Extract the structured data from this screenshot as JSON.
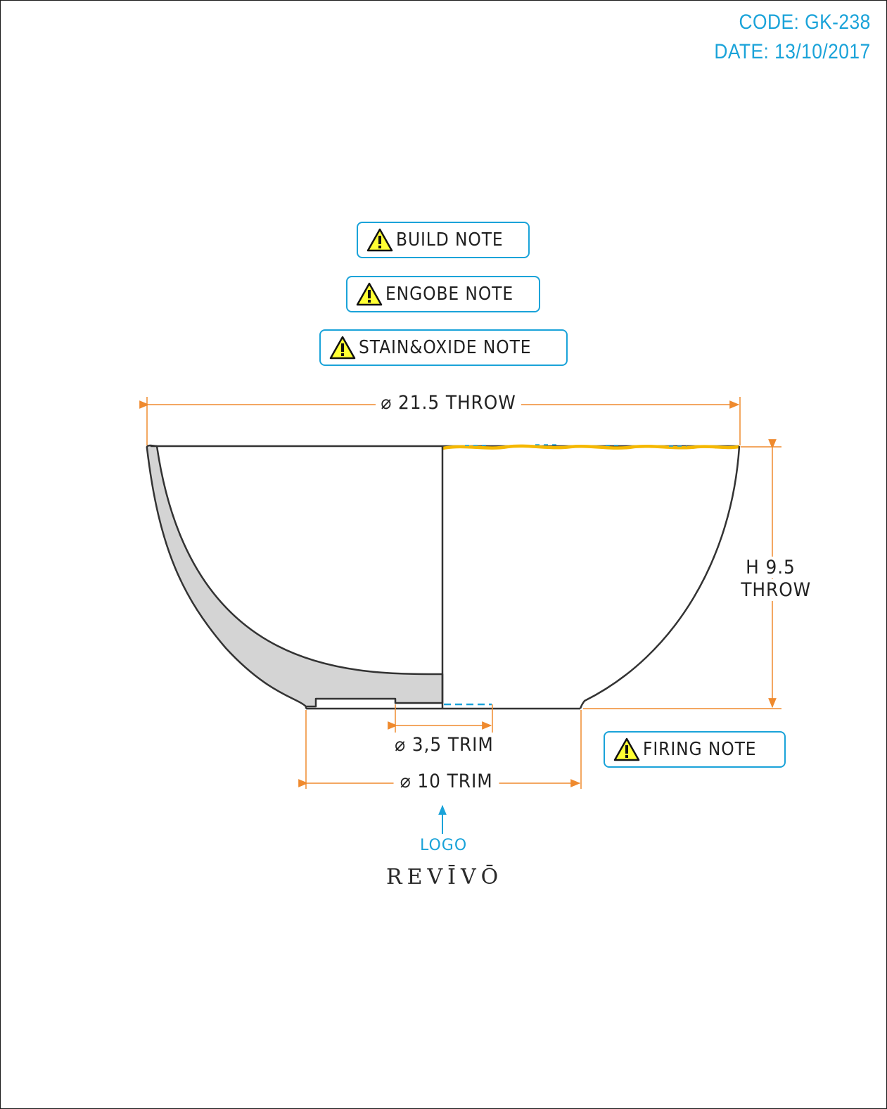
{
  "header": {
    "code": "CODE: GK-238",
    "date": "DATE: 13/10/2017"
  },
  "notes": {
    "build": "BUILD NOTE",
    "engobe": "ENGOBE NOTE",
    "stain_oxide": "STAIN&OXIDE NOTE",
    "firing": "FIRING NOTE"
  },
  "dimensions": {
    "throw_diameter": "⌀ 21.5 THROW",
    "height_line1": "H 9.5",
    "height_line2": "THROW",
    "foot_trim": "⌀ 3,5 TRIM",
    "base_trim": "⌀ 10 TRIM"
  },
  "logo": {
    "caption": "LOGO",
    "brand": "REVĪVŌ"
  },
  "colors": {
    "accent": "#1aa3d9",
    "dimension": "#ef8a2e",
    "outline": "#333333",
    "section_fill": "#d4d4d4",
    "rim_glaze": "#f5b800",
    "warning": "#ffff33"
  }
}
